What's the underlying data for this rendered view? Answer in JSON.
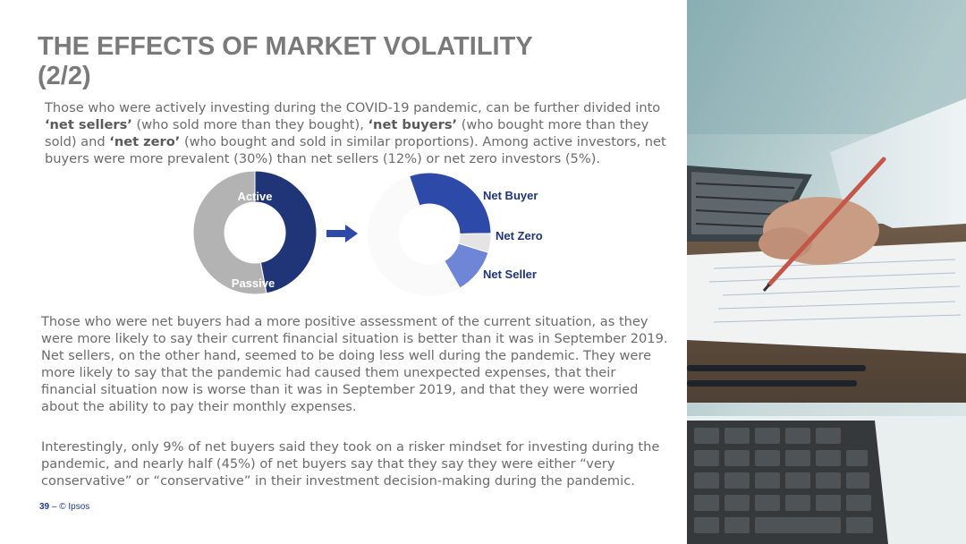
{
  "slide": {
    "title_line1": "THE EFFECTS OF MARKET VOLATILITY",
    "title_line2": "(2/2)",
    "intro": {
      "t1": "Those who were actively investing during the COVID-19 pandemic, can be further divided into ",
      "b1": "‘net sellers’",
      "t2": " (who sold more than they bought), ",
      "b2": "‘net buyers’",
      "t3": " (who bought more than they sold) and ",
      "b3": "‘net zero’",
      "t4": " (who bought and sold in similar proportions). Among active investors, net buyers were more prevalent (30%) than net sellers (12%) or net zero investors (5%)."
    },
    "paragraph2": "Those who were net buyers had a more positive assessment of the current situation, as they were more likely to say their current financial situation is better than it was in September 2019. Net sellers, on the other hand, seemed to be doing less well during the pandemic. They were more likely to say that the pandemic had caused them unexpected expenses, that their financial situation now is worse than it was in September 2019, and that they were worried about the ability to pay their monthly expenses.",
    "paragraph3": "Interestingly, only 9% of net buyers said they took on a risker mindset for investing during the pandemic, and nearly half (45%) of net buyers say that they say they were either “very conservative” or “conservative” in their investment decision-making during the pandemic."
  },
  "chart_data": [
    {
      "type": "pie",
      "style": "donut",
      "labels": [
        "Active",
        "Passive"
      ],
      "values": [
        47,
        53
      ],
      "colors": [
        "#1f3577",
        "#b3b3b3"
      ]
    },
    {
      "type": "pie",
      "style": "donut",
      "labels": [
        "Net Buyer",
        "Net Zero",
        "Net Seller"
      ],
      "values": [
        30,
        5,
        12
      ],
      "colors": [
        "#2e4aa8",
        "#e4e4e4",
        "#6f86d6"
      ]
    }
  ],
  "footer": {
    "page_number": "39",
    "separator": " – ",
    "copyright": "© Ipsos"
  },
  "photo": {
    "description_icon": "photo-icon"
  }
}
